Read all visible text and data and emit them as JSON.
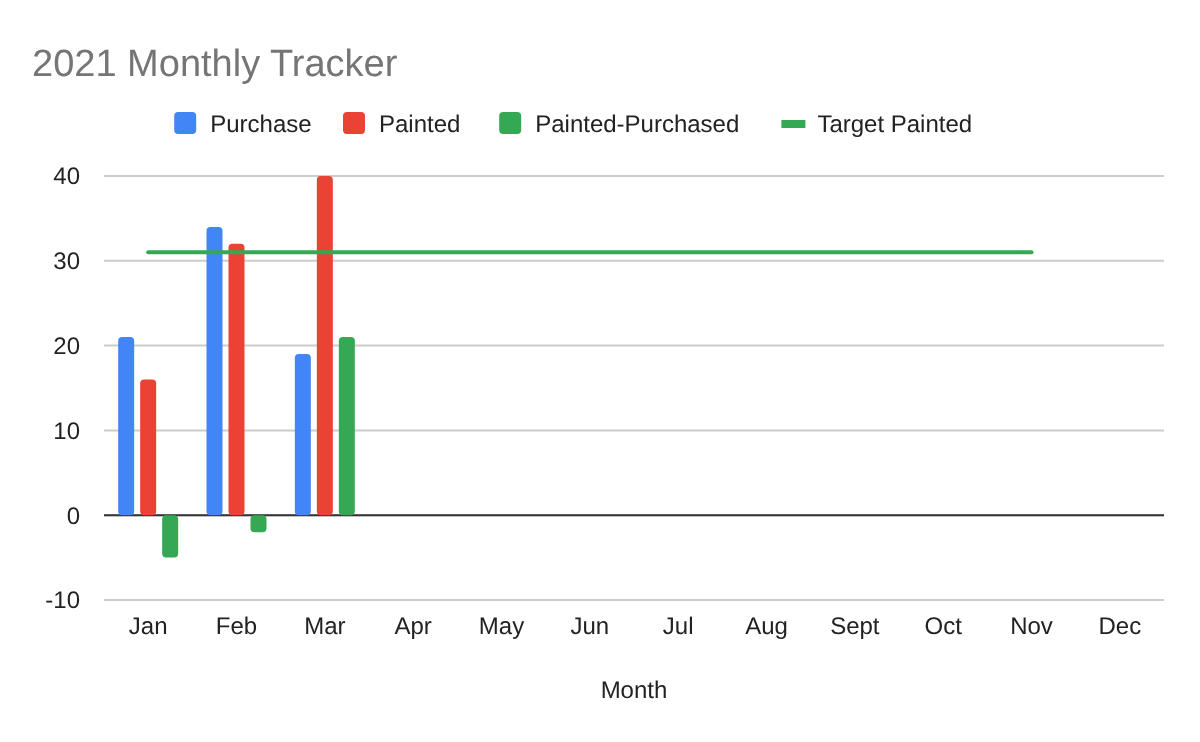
{
  "chart_data": {
    "type": "bar",
    "title": "2021 Monthly Tracker",
    "xlabel": "Month",
    "categories": [
      "Jan",
      "Feb",
      "Mar",
      "Apr",
      "May",
      "Jun",
      "Jul",
      "Aug",
      "Sept",
      "Oct",
      "Nov",
      "Dec"
    ],
    "series": [
      {
        "name": "Purchase",
        "color": "#4285f4",
        "values": [
          21,
          34,
          19,
          null,
          null,
          null,
          null,
          null,
          null,
          null,
          null,
          null
        ]
      },
      {
        "name": "Painted",
        "color": "#ea4335",
        "values": [
          16,
          32,
          40,
          null,
          null,
          null,
          null,
          null,
          null,
          null,
          null,
          null
        ]
      },
      {
        "name": "Painted-Purchased",
        "color": "#34a853",
        "values": [
          -5,
          -2,
          21,
          null,
          null,
          null,
          null,
          null,
          null,
          null,
          null,
          null
        ]
      },
      {
        "name": "Target Painted",
        "type": "line",
        "color": "#34a853",
        "values": [
          31,
          31,
          31,
          31,
          31,
          31,
          31,
          31,
          31,
          31,
          31,
          null
        ]
      }
    ],
    "ylim": [
      -10,
      40
    ],
    "yticks": [
      -10,
      0,
      10,
      20,
      30,
      40
    ],
    "grid": "y",
    "legend": "top"
  }
}
